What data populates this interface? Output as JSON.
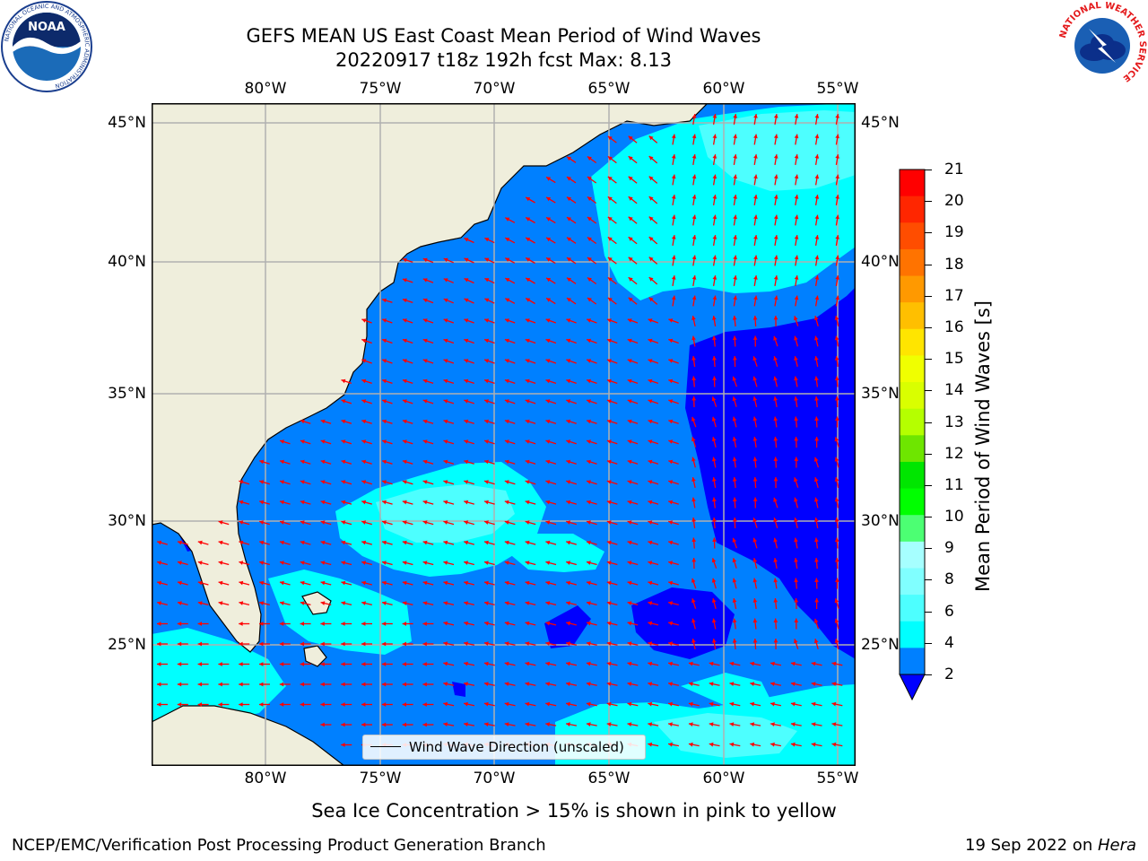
{
  "title": {
    "line1": "GEFS MEAN US East Coast Mean Period of Wind Waves",
    "line2": "20220917 t18z 192h fcst   Max: 8.13"
  },
  "map": {
    "lon_labels": [
      "80°W",
      "75°W",
      "70°W",
      "65°W",
      "60°W",
      "55°W"
    ],
    "lat_labels": [
      "45°N",
      "40°N",
      "35°N",
      "30°N",
      "25°N"
    ],
    "lon_range": [
      -85,
      -54
    ],
    "lat_range": [
      20.5,
      45.8
    ],
    "grid": true,
    "legend": {
      "label": "Wind Wave Direction (unscaled)",
      "position": "bottom-center"
    },
    "colors": {
      "land": "#efeedc",
      "water_2_4": "#0080ff",
      "water_0_2": "#0000ff",
      "water_4_6": "#00ffff",
      "arrow": "#ff0000",
      "grid": "#b0b0b0"
    }
  },
  "colorbar": {
    "label": "Mean Period of Wind Waves [s]",
    "ticks": [
      "21",
      "20",
      "19",
      "18",
      "17",
      "16",
      "15",
      "14",
      "13",
      "12",
      "11",
      "10",
      "9",
      "8",
      "6",
      "4",
      "2"
    ],
    "colors": [
      "#ff0000",
      "#ff2600",
      "#ff4d00",
      "#ff7300",
      "#ff9900",
      "#ffbf00",
      "#ffe500",
      "#f0ff00",
      "#d9ff00",
      "#b5ff00",
      "#6ee600",
      "#00e600",
      "#00ff00",
      "#4cff73",
      "#a6ffff",
      "#80ffff",
      "#4dffff",
      "#00ffff",
      "#0080ff"
    ],
    "extend_color": "#0000ff"
  },
  "subtitle": "Sea Ice Concentration > 15% is shown in pink to yellow",
  "footer": {
    "left": "NCEP/EMC/Verification Post Processing Product Generation Branch",
    "right_date": "19 Sep 2022 on ",
    "right_host": "Hera"
  },
  "logos": {
    "noaa": {
      "text": "NOAA",
      "ring_text": "NATIONAL OCEANIC AND ATMOSPHERIC ADMINISTRATION",
      "bottom_text": "U.S. DEPARTMENT OF COMMERCE"
    },
    "nws": {
      "ring_text": "NATIONAL WEATHER SERVICE"
    }
  }
}
